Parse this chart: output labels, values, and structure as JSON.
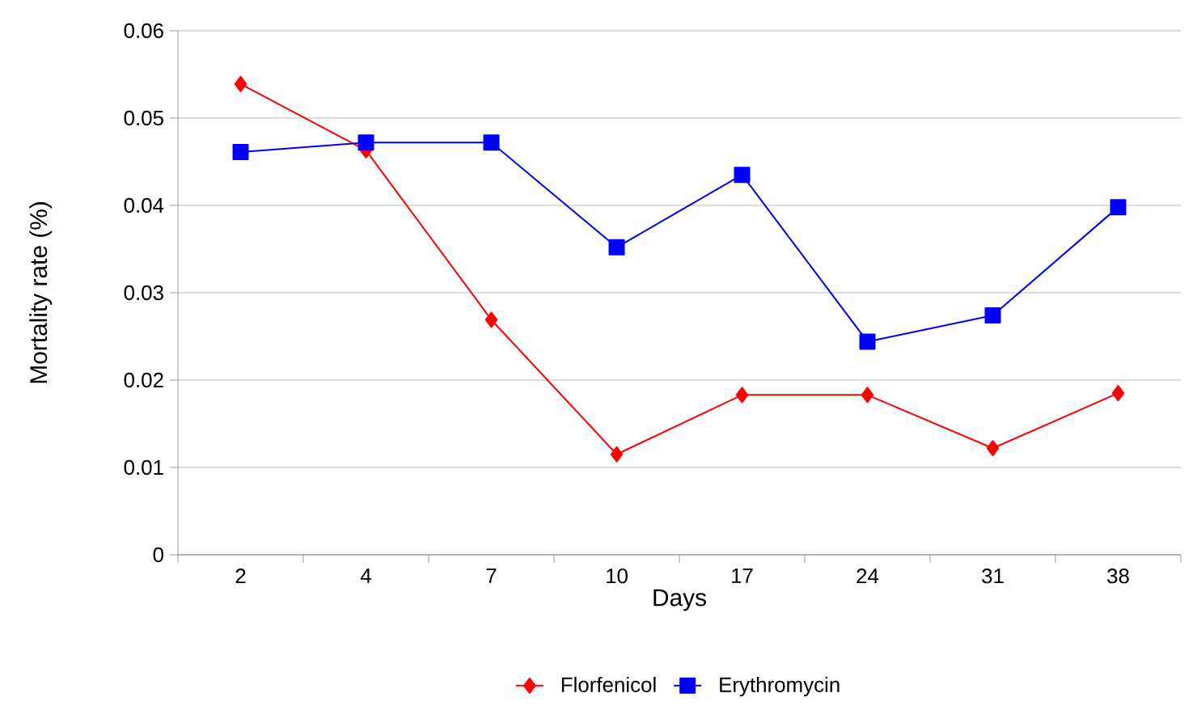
{
  "chart_data": {
    "type": "line",
    "xlabel": "Days",
    "ylabel": "Mortality rate (%)",
    "categories": [
      "2",
      "4",
      "7",
      "10",
      "17",
      "24",
      "31",
      "38"
    ],
    "series": [
      {
        "name": "Florfenicol",
        "color": "#ff0000",
        "marker": "diamond",
        "values": [
          0.0539,
          0.0463,
          0.0269,
          0.0115,
          0.0183,
          0.0183,
          0.0122,
          0.0185
        ]
      },
      {
        "name": "Erythromycin",
        "color": "#0000ff",
        "marker": "square",
        "values": [
          0.0461,
          0.0472,
          0.0472,
          0.0352,
          0.0435,
          0.0244,
          0.0274,
          0.0398
        ]
      }
    ],
    "ylim": [
      0,
      0.06
    ],
    "yticks": [
      0,
      0.01,
      0.02,
      0.03,
      0.04,
      0.05,
      0.06
    ],
    "grid": "y",
    "legend": "bottom",
    "line_style": "solid"
  }
}
